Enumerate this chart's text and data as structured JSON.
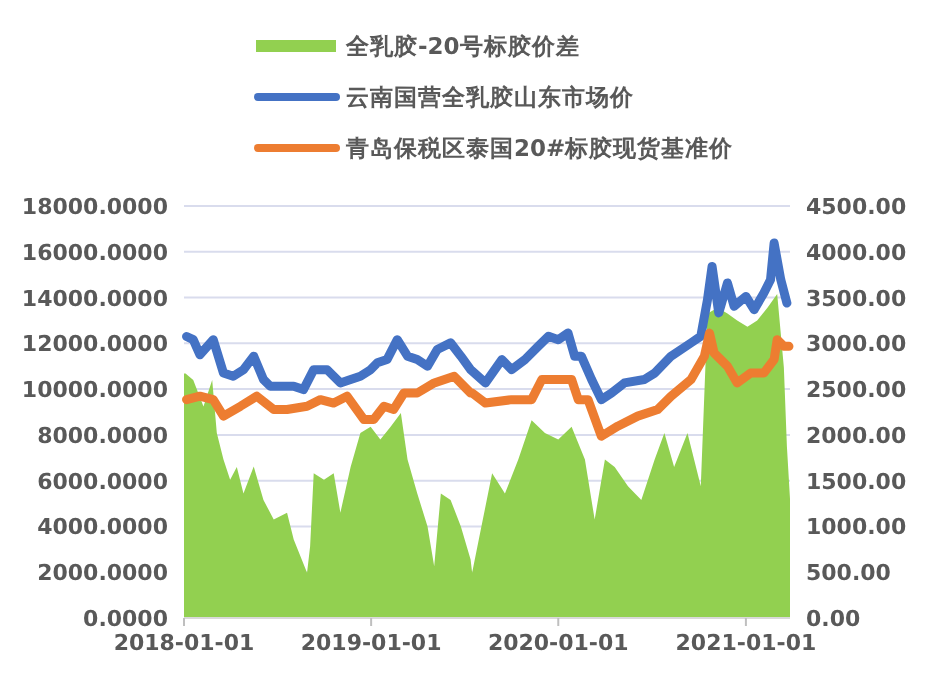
{
  "chart_data": {
    "type": "line",
    "legend": "top",
    "grid": "y",
    "xlim": [
      "2018-01-01",
      "2021-03-28"
    ],
    "xticks": [
      {
        "value": "2018-01-01",
        "label": "2018-01-01"
      },
      {
        "value": "2019-01-01",
        "label": "2019-01-01"
      },
      {
        "value": "2020-01-01",
        "label": "2020-01-01"
      },
      {
        "value": "2021-01-01",
        "label": "2021-01-01"
      }
    ],
    "ylim": [
      0,
      18000
    ],
    "yticks": [
      {
        "value": 0,
        "label": "0.0000"
      },
      {
        "value": 2000,
        "label": "2000.0000"
      },
      {
        "value": 4000,
        "label": "4000.0000"
      },
      {
        "value": 6000,
        "label": "6000.0000"
      },
      {
        "value": 8000,
        "label": "8000.0000"
      },
      {
        "value": 10000,
        "label": "10000.0000"
      },
      {
        "value": 12000,
        "label": "12000.0000"
      },
      {
        "value": 14000,
        "label": "14000.0000"
      },
      {
        "value": 16000,
        "label": "16000.0000"
      },
      {
        "value": 18000,
        "label": "18000.0000"
      }
    ],
    "y2lim": [
      0,
      4500
    ],
    "y2ticks": [
      {
        "value": 0,
        "label": "0.00"
      },
      {
        "value": 500,
        "label": "500.00"
      },
      {
        "value": 1000,
        "label": "1000.00"
      },
      {
        "value": 1500,
        "label": "1500.00"
      },
      {
        "value": 2000,
        "label": "2000.00"
      },
      {
        "value": 2500,
        "label": "2500.00"
      },
      {
        "value": 3000,
        "label": "3000.00"
      },
      {
        "value": 3500,
        "label": "3500.00"
      },
      {
        "value": 4000,
        "label": "4000.00"
      },
      {
        "value": 4500,
        "label": "4500.00"
      }
    ],
    "series": [
      {
        "name": "全乳胶-20号标胶价差",
        "type": "area",
        "axis": "y2",
        "color": "#92d050",
        "x": [
          "2018-01-01",
          "2018-01-04",
          "2018-01-19",
          "2018-02-08",
          "2018-02-25",
          "2018-03-06",
          "2018-03-19",
          "2018-04-01",
          "2018-04-14",
          "2018-04-27",
          "2018-05-17",
          "2018-06-05",
          "2018-06-25",
          "2018-07-21",
          "2018-08-03",
          "2018-08-29",
          "2018-09-04",
          "2018-09-11",
          "2018-10-01",
          "2018-10-20",
          "2018-11-02",
          "2018-11-22",
          "2018-12-11",
          "2018-12-31",
          "2019-01-19",
          "2019-02-08",
          "2019-02-28",
          "2019-03-13",
          "2019-04-01",
          "2019-04-21",
          "2019-05-04",
          "2019-05-17",
          "2019-06-05",
          "2019-06-25",
          "2019-07-14",
          "2019-07-17",
          "2019-07-30",
          "2019-08-25",
          "2019-09-19",
          "2019-10-15",
          "2019-11-10",
          "2019-12-06",
          "2020-01-01",
          "2020-01-27",
          "2020-02-22",
          "2020-03-12",
          "2020-04-01",
          "2020-04-20",
          "2020-05-16",
          "2020-06-11",
          "2020-07-07",
          "2020-07-26",
          "2020-08-14",
          "2020-09-09",
          "2020-10-05",
          "2020-10-18",
          "2020-11-07",
          "2020-11-26",
          "2020-12-15",
          "2021-01-04",
          "2021-01-23",
          "2021-02-12",
          "2021-03-03",
          "2021-03-16",
          "2021-03-22",
          "2021-03-28"
        ],
        "values": [
          2670,
          2670,
          2600,
          2310,
          2600,
          2020,
          1730,
          1510,
          1650,
          1360,
          1655,
          1290,
          1075,
          1150,
          857,
          494,
          784,
          1580,
          1510,
          1580,
          1150,
          1650,
          2020,
          2090,
          1950,
          2090,
          2240,
          1730,
          1360,
          1000,
          566,
          1360,
          1290,
          1000,
          640,
          494,
          857,
          1580,
          1360,
          1730,
          2160,
          2020,
          1950,
          2090,
          1730,
          1075,
          1730,
          1650,
          1440,
          1290,
          1730,
          2020,
          1650,
          2020,
          1440,
          3325,
          3390,
          3325,
          3250,
          3180,
          3250,
          3390,
          3540,
          2740,
          1870,
          1300
        ]
      },
      {
        "name": "云南国营全乳胶山东市场价",
        "color": "#4472c4",
        "x": [
          "2018-01-06",
          "2018-01-19",
          "2018-02-01",
          "2018-02-27",
          "2018-03-19",
          "2018-04-07",
          "2018-04-27",
          "2018-05-17",
          "2018-06-05",
          "2018-06-18",
          "2018-08-03",
          "2018-08-22",
          "2018-09-11",
          "2018-10-07",
          "2018-11-02",
          "2018-11-22",
          "2018-12-11",
          "2018-12-31",
          "2019-01-13",
          "2019-02-01",
          "2019-02-21",
          "2019-03-13",
          "2019-04-01",
          "2019-04-21",
          "2019-05-10",
          "2019-06-05",
          "2019-06-25",
          "2019-07-14",
          "2019-08-12",
          "2019-09-13",
          "2019-10-02",
          "2019-10-28",
          "2019-11-23",
          "2019-12-13",
          "2020-01-01",
          "2020-01-20",
          "2020-02-02",
          "2020-02-15",
          "2020-03-06",
          "2020-03-25",
          "2020-04-14",
          "2020-05-09",
          "2020-06-17",
          "2020-07-07",
          "2020-08-08",
          "2020-09-16",
          "2020-10-05",
          "2020-10-18",
          "2020-10-27",
          "2020-11-09",
          "2020-11-26",
          "2020-12-09",
          "2021-01-01",
          "2021-01-17",
          "2021-02-05",
          "2021-02-18",
          "2021-02-25",
          "2021-03-10",
          "2021-03-22"
        ],
        "values": [
          12300,
          12160,
          11500,
          12160,
          10700,
          10560,
          10850,
          11440,
          10420,
          10130,
          10130,
          9980,
          10850,
          10850,
          10270,
          10420,
          10560,
          10850,
          11150,
          11290,
          12160,
          11440,
          11290,
          11000,
          11730,
          12020,
          11440,
          10850,
          10270,
          11290,
          10850,
          11290,
          11870,
          12310,
          12160,
          12450,
          11440,
          11440,
          10420,
          9540,
          9830,
          10270,
          10420,
          10700,
          11440,
          12020,
          12310,
          13900,
          15360,
          13330,
          14640,
          13620,
          14050,
          13470,
          14200,
          14780,
          16380,
          14780,
          13760
        ]
      },
      {
        "name": "青岛保税区泰国20#标胶现货基准价",
        "color": "#ed7d31",
        "x": [
          "2018-01-06",
          "2018-02-01",
          "2018-02-27",
          "2018-03-19",
          "2018-04-21",
          "2018-05-23",
          "2018-06-25",
          "2018-07-21",
          "2018-08-29",
          "2018-09-24",
          "2018-10-20",
          "2018-11-15",
          "2018-12-18",
          "2019-01-06",
          "2019-01-26",
          "2019-02-14",
          "2019-03-06",
          "2019-04-01",
          "2019-05-04",
          "2019-06-12",
          "2019-07-14",
          "2019-07-17",
          "2019-08-12",
          "2019-10-02",
          "2019-11-10",
          "2019-11-30",
          "2020-01-01",
          "2020-01-27",
          "2020-02-09",
          "2020-02-28",
          "2020-03-25",
          "2020-04-26",
          "2020-06-04",
          "2020-07-13",
          "2020-08-08",
          "2020-09-16",
          "2020-10-12",
          "2020-10-22",
          "2020-10-31",
          "2020-11-26",
          "2020-12-15",
          "2021-01-10",
          "2021-02-05",
          "2021-02-25",
          "2021-03-03",
          "2021-03-16",
          "2021-03-26"
        ],
        "values": [
          9540,
          9690,
          9540,
          8820,
          9250,
          9690,
          9110,
          9110,
          9250,
          9540,
          9390,
          9690,
          8670,
          8670,
          9250,
          9110,
          9830,
          9830,
          10270,
          10560,
          9830,
          9830,
          9390,
          9540,
          9540,
          10420,
          10420,
          10420,
          9540,
          9540,
          7940,
          8380,
          8820,
          9110,
          9690,
          10420,
          11440,
          12450,
          11580,
          11000,
          10270,
          10700,
          10700,
          11290,
          12160,
          11870,
          11870
        ]
      }
    ]
  }
}
